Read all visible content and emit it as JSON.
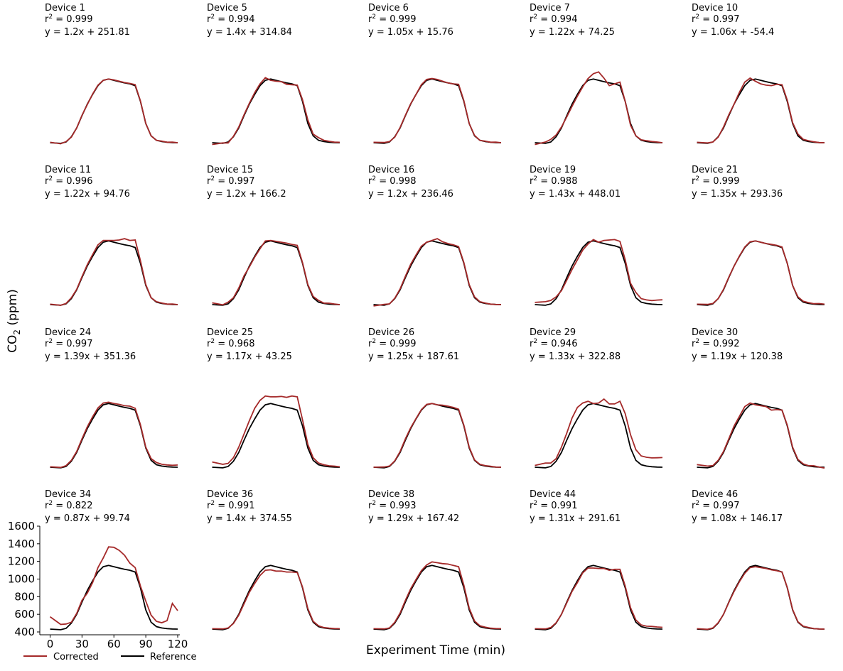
{
  "colors": {
    "corrected": "#a52a2a",
    "reference": "#000000"
  },
  "axes": {
    "xlabel": "Experiment Time (min)",
    "ylabel_main": "CO",
    "ylabel_sub": "2",
    "ylabel_unit": " (ppm)",
    "xlim": [
      -5,
      122
    ],
    "ylim": [
      400,
      1600
    ],
    "xticks": [
      "0",
      "30",
      "60",
      "90",
      "120"
    ],
    "yticks": [
      "400",
      "600",
      "800",
      "1000",
      "1200",
      "1400",
      "1600"
    ]
  },
  "legend": {
    "placement": "bottom-left",
    "corrected": "Corrected",
    "reference": "Reference"
  },
  "chart_data": {
    "type": "line",
    "title": "",
    "xlabel": "Experiment Time (min)",
    "ylabel": "CO2 (ppm)",
    "xlim": [
      -5,
      122
    ],
    "ylim": [
      400,
      1600
    ],
    "grid": false,
    "legend": "bottom-left",
    "reference": {
      "name": "Reference",
      "x": [
        0,
        10,
        15,
        20,
        25,
        30,
        35,
        40,
        45,
        50,
        55,
        60,
        65,
        70,
        75,
        80,
        85,
        90,
        95,
        100,
        105,
        110,
        115,
        120
      ],
      "y": [
        432,
        425,
        440,
        500,
        600,
        740,
        870,
        980,
        1080,
        1140,
        1155,
        1140,
        1125,
        1110,
        1100,
        1080,
        900,
        650,
        510,
        460,
        445,
        438,
        434,
        432
      ]
    },
    "panels": [
      {
        "device": "Device 1",
        "r2": "0.999",
        "eq": "y = 1.2x + 251.81",
        "dy": [
          5,
          -5,
          5,
          -5,
          0,
          5,
          -5,
          5,
          5,
          0,
          0,
          5,
          5,
          5,
          5,
          10,
          5,
          0,
          0,
          0,
          5,
          0,
          5,
          0
        ]
      },
      {
        "device": "Device 5",
        "r2": "0.994",
        "eq": "y = 1.4x + 314.84",
        "dy": [
          -20,
          5,
          -10,
          5,
          10,
          10,
          10,
          20,
          20,
          30,
          -15,
          -10,
          0,
          -15,
          -10,
          5,
          20,
          40,
          20,
          30,
          15,
          10,
          5,
          5
        ]
      },
      {
        "device": "Device 6",
        "r2": "0.999",
        "eq": "y = 1.05x + 15.76",
        "dy": [
          5,
          10,
          5,
          -5,
          5,
          5,
          5,
          0,
          10,
          10,
          5,
          10,
          5,
          0,
          0,
          15,
          10,
          0,
          5,
          0,
          5,
          0,
          5,
          0
        ]
      },
      {
        "device": "Device 7",
        "r2": "0.994",
        "eq": "y = 1.22x + 74.25",
        "dy": [
          -20,
          15,
          30,
          20,
          10,
          -15,
          -25,
          -20,
          -15,
          20,
          60,
          95,
          40,
          -30,
          0,
          40,
          0,
          -20,
          0,
          5,
          10,
          8,
          6,
          0
        ]
      },
      {
        "device": "Device 10",
        "r2": "0.997",
        "eq": "y = 1.06x + -54.4",
        "dy": [
          5,
          5,
          0,
          -5,
          10,
          10,
          0,
          25,
          40,
          25,
          -25,
          -40,
          -40,
          -30,
          -5,
          10,
          15,
          10,
          20,
          10,
          10,
          5,
          0,
          0
        ]
      },
      {
        "device": "Device 11",
        "r2": "0.996",
        "eq": "y = 1.22x + 94.76",
        "dy": [
          5,
          0,
          5,
          10,
          5,
          10,
          15,
          20,
          30,
          20,
          5,
          20,
          40,
          70,
          60,
          85,
          30,
          10,
          0,
          5,
          5,
          0,
          5,
          0
        ]
      },
      {
        "device": "Device 15",
        "r2": "0.997",
        "eq": "y = 1.2x + 166.2",
        "dy": [
          20,
          5,
          20,
          10,
          20,
          20,
          -10,
          -10,
          -15,
          15,
          5,
          10,
          15,
          20,
          15,
          25,
          10,
          10,
          15,
          20,
          5,
          10,
          5,
          0
        ]
      },
      {
        "device": "Device 16",
        "r2": "0.998",
        "eq": "y = 1.2x + 236.46",
        "dy": [
          -15,
          10,
          0,
          5,
          10,
          15,
          20,
          15,
          15,
          0,
          5,
          40,
          20,
          15,
          10,
          10,
          10,
          10,
          10,
          5,
          5,
          0,
          0,
          0
        ]
      },
      {
        "device": "Device 19",
        "r2": "0.988",
        "eq": "y = 1.43x + 448.01",
        "dy": [
          25,
          40,
          40,
          20,
          -10,
          -30,
          -40,
          -40,
          -30,
          -20,
          15,
          0,
          35,
          55,
          70,
          70,
          40,
          25,
          60,
          40,
          40,
          40,
          50,
          55
        ]
      },
      {
        "device": "Device 21",
        "r2": "0.999",
        "eq": "y = 1.35x + 293.36",
        "dy": [
          5,
          10,
          5,
          0,
          5,
          5,
          0,
          5,
          5,
          5,
          0,
          0,
          0,
          5,
          5,
          5,
          0,
          0,
          10,
          10,
          10,
          5,
          10,
          5
        ]
      },
      {
        "device": "Device 24",
        "r2": "0.997",
        "eq": "y = 1.39x + 351.36",
        "dy": [
          5,
          5,
          10,
          10,
          10,
          15,
          20,
          25,
          25,
          20,
          15,
          15,
          20,
          20,
          25,
          20,
          15,
          10,
          20,
          25,
          20,
          20,
          20,
          25
        ]
      },
      {
        "device": "Device 25",
        "r2": "0.968",
        "eq": "y = 1.17x + 43.25",
        "dy": [
          60,
          40,
          35,
          40,
          60,
          70,
          90,
          120,
          110,
          100,
          75,
          90,
          110,
          115,
          140,
          150,
          70,
          40,
          30,
          20,
          15,
          10,
          10,
          5
        ]
      },
      {
        "device": "Device 26",
        "r2": "0.999",
        "eq": "y = 1.25x + 187.61",
        "dy": [
          0,
          10,
          5,
          5,
          10,
          15,
          10,
          5,
          5,
          5,
          0,
          0,
          10,
          15,
          10,
          10,
          10,
          10,
          5,
          5,
          5,
          5,
          0,
          0
        ]
      },
      {
        "device": "Device 29",
        "r2": "0.946",
        "eq": "y = 1.33x + 322.88",
        "dy": [
          20,
          55,
          40,
          30,
          60,
          80,
          120,
          130,
          80,
          40,
          0,
          20,
          80,
          40,
          50,
          100,
          140,
          150,
          120,
          100,
          100,
          100,
          105,
          110
        ]
      },
      {
        "device": "Device 30",
        "r2": "0.992",
        "eq": "y = 1.19x + 120.38",
        "dy": [
          30,
          20,
          10,
          10,
          10,
          15,
          30,
          30,
          40,
          20,
          -15,
          -10,
          -5,
          -30,
          -15,
          0,
          10,
          10,
          10,
          10,
          5,
          10,
          0,
          -10
        ]
      },
      {
        "device": "Device 34",
        "r2": "0.822",
        "eq": "y = 0.87x + 99.74",
        "dy": [
          140,
          60,
          50,
          10,
          10,
          20,
          -30,
          -20,
          50,
          100,
          210,
          220,
          200,
          160,
          80,
          50,
          20,
          100,
          80,
          60,
          60,
          90,
          290,
          210
        ]
      },
      {
        "device": "Device 36",
        "r2": "0.991",
        "eq": "y = 1.4x + 374.55",
        "dy": [
          5,
          10,
          5,
          -5,
          -10,
          -20,
          -20,
          -30,
          -40,
          -40,
          -50,
          -50,
          -35,
          -30,
          -20,
          -5,
          10,
          15,
          10,
          10,
          5,
          5,
          5,
          5
        ]
      },
      {
        "device": "Device 38",
        "r2": "0.993",
        "eq": "y = 1.29x + 167.42",
        "dy": [
          5,
          10,
          5,
          10,
          15,
          20,
          20,
          15,
          15,
          20,
          40,
          45,
          50,
          60,
          55,
          60,
          30,
          20,
          15,
          10,
          10,
          5,
          5,
          5
        ]
      },
      {
        "device": "Device 44",
        "r2": "0.991",
        "eq": "y = 1.31x + 291.61",
        "dy": [
          5,
          10,
          10,
          5,
          0,
          -10,
          -10,
          -20,
          -10,
          -15,
          -30,
          -20,
          -5,
          -10,
          10,
          30,
          20,
          25,
          25,
          20,
          20,
          25,
          22,
          20
        ]
      },
      {
        "device": "Device 46",
        "r2": "0.997",
        "eq": "y = 1.08x + 146.17",
        "dy": [
          5,
          5,
          5,
          5,
          0,
          -5,
          -10,
          -10,
          -15,
          -10,
          -15,
          -10,
          -5,
          -5,
          -5,
          0,
          5,
          5,
          5,
          5,
          5,
          0,
          0,
          0
        ]
      }
    ]
  }
}
